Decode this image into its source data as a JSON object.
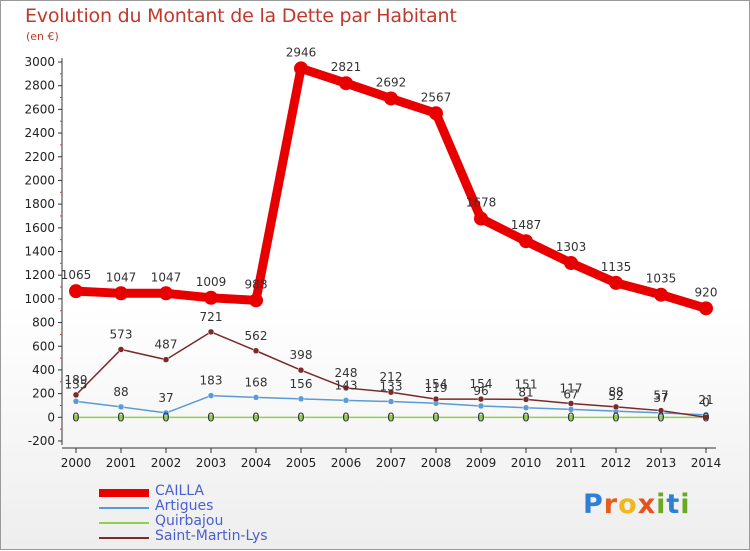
{
  "title": "Evolution du Montant de la Dette par Habitant",
  "subtitle": "(en €)",
  "logo_text": "Proxiti",
  "logo_colors": [
    "#2f7fd6",
    "#e85c1b",
    "#f0b81c",
    "#e8511b",
    "#6aa925",
    "#2f7fd6",
    "#6aa925"
  ],
  "chart_data": {
    "type": "line",
    "title": "Evolution du Montant de la Dette par Habitant",
    "subtitle": "(en €)",
    "xlabel": "",
    "ylabel": "",
    "x": [
      "2000",
      "2001",
      "2002",
      "2003",
      "2004",
      "2005",
      "2006",
      "2007",
      "2008",
      "2009",
      "2010",
      "2011",
      "2012",
      "2013",
      "2014"
    ],
    "ylim": [
      -200,
      3000
    ],
    "yticks": [
      -200,
      0,
      200,
      400,
      600,
      800,
      1000,
      1200,
      1400,
      1600,
      1800,
      2000,
      2200,
      2400,
      2600,
      2800,
      3000
    ],
    "grid": false,
    "legend_position": "bottom-left",
    "series": [
      {
        "name": "CAILLA",
        "color": "#e80000",
        "values": [
          1065,
          1047,
          1047,
          1009,
          988,
          2946,
          2821,
          2692,
          2567,
          1678,
          1487,
          1303,
          1135,
          1035,
          920
        ],
        "labels": [
          "1065",
          "1047",
          "1047",
          "1009",
          "988",
          "2946",
          "2821",
          "2692",
          "2567",
          "1678",
          "1487",
          "1303",
          "1135",
          "1035",
          "920"
        ]
      },
      {
        "name": "Artigues",
        "color": "#5a9bd5",
        "values": [
          135,
          88,
          37,
          183,
          168,
          156,
          143,
          133,
          119,
          96,
          81,
          67,
          52,
          37,
          21
        ],
        "labels": [
          "135",
          "88",
          "37",
          "183",
          "168",
          "156",
          "143",
          "133",
          "119",
          "96",
          "81",
          "67",
          "52",
          "37",
          "21"
        ]
      },
      {
        "name": "Quirbajou",
        "color": "#8fd14f",
        "values": [
          0,
          0,
          0,
          0,
          0,
          0,
          0,
          0,
          0,
          0,
          0,
          0,
          0,
          0,
          0
        ],
        "labels": [
          "0",
          "0",
          "0",
          "0",
          "0",
          "0",
          "0",
          "0",
          "0",
          "0",
          "0",
          "0",
          "0",
          "0",
          "0"
        ]
      },
      {
        "name": "Saint-Martin-Lys",
        "color": "#7a2a2a",
        "values": [
          189,
          573,
          487,
          721,
          562,
          398,
          248,
          212,
          154,
          154,
          151,
          117,
          88,
          57,
          0
        ],
        "labels": [
          "189",
          "573",
          "487",
          "721",
          "562",
          "398",
          "248",
          "212",
          "154",
          "154",
          "151",
          "117",
          "88",
          "57",
          "0"
        ]
      }
    ]
  }
}
